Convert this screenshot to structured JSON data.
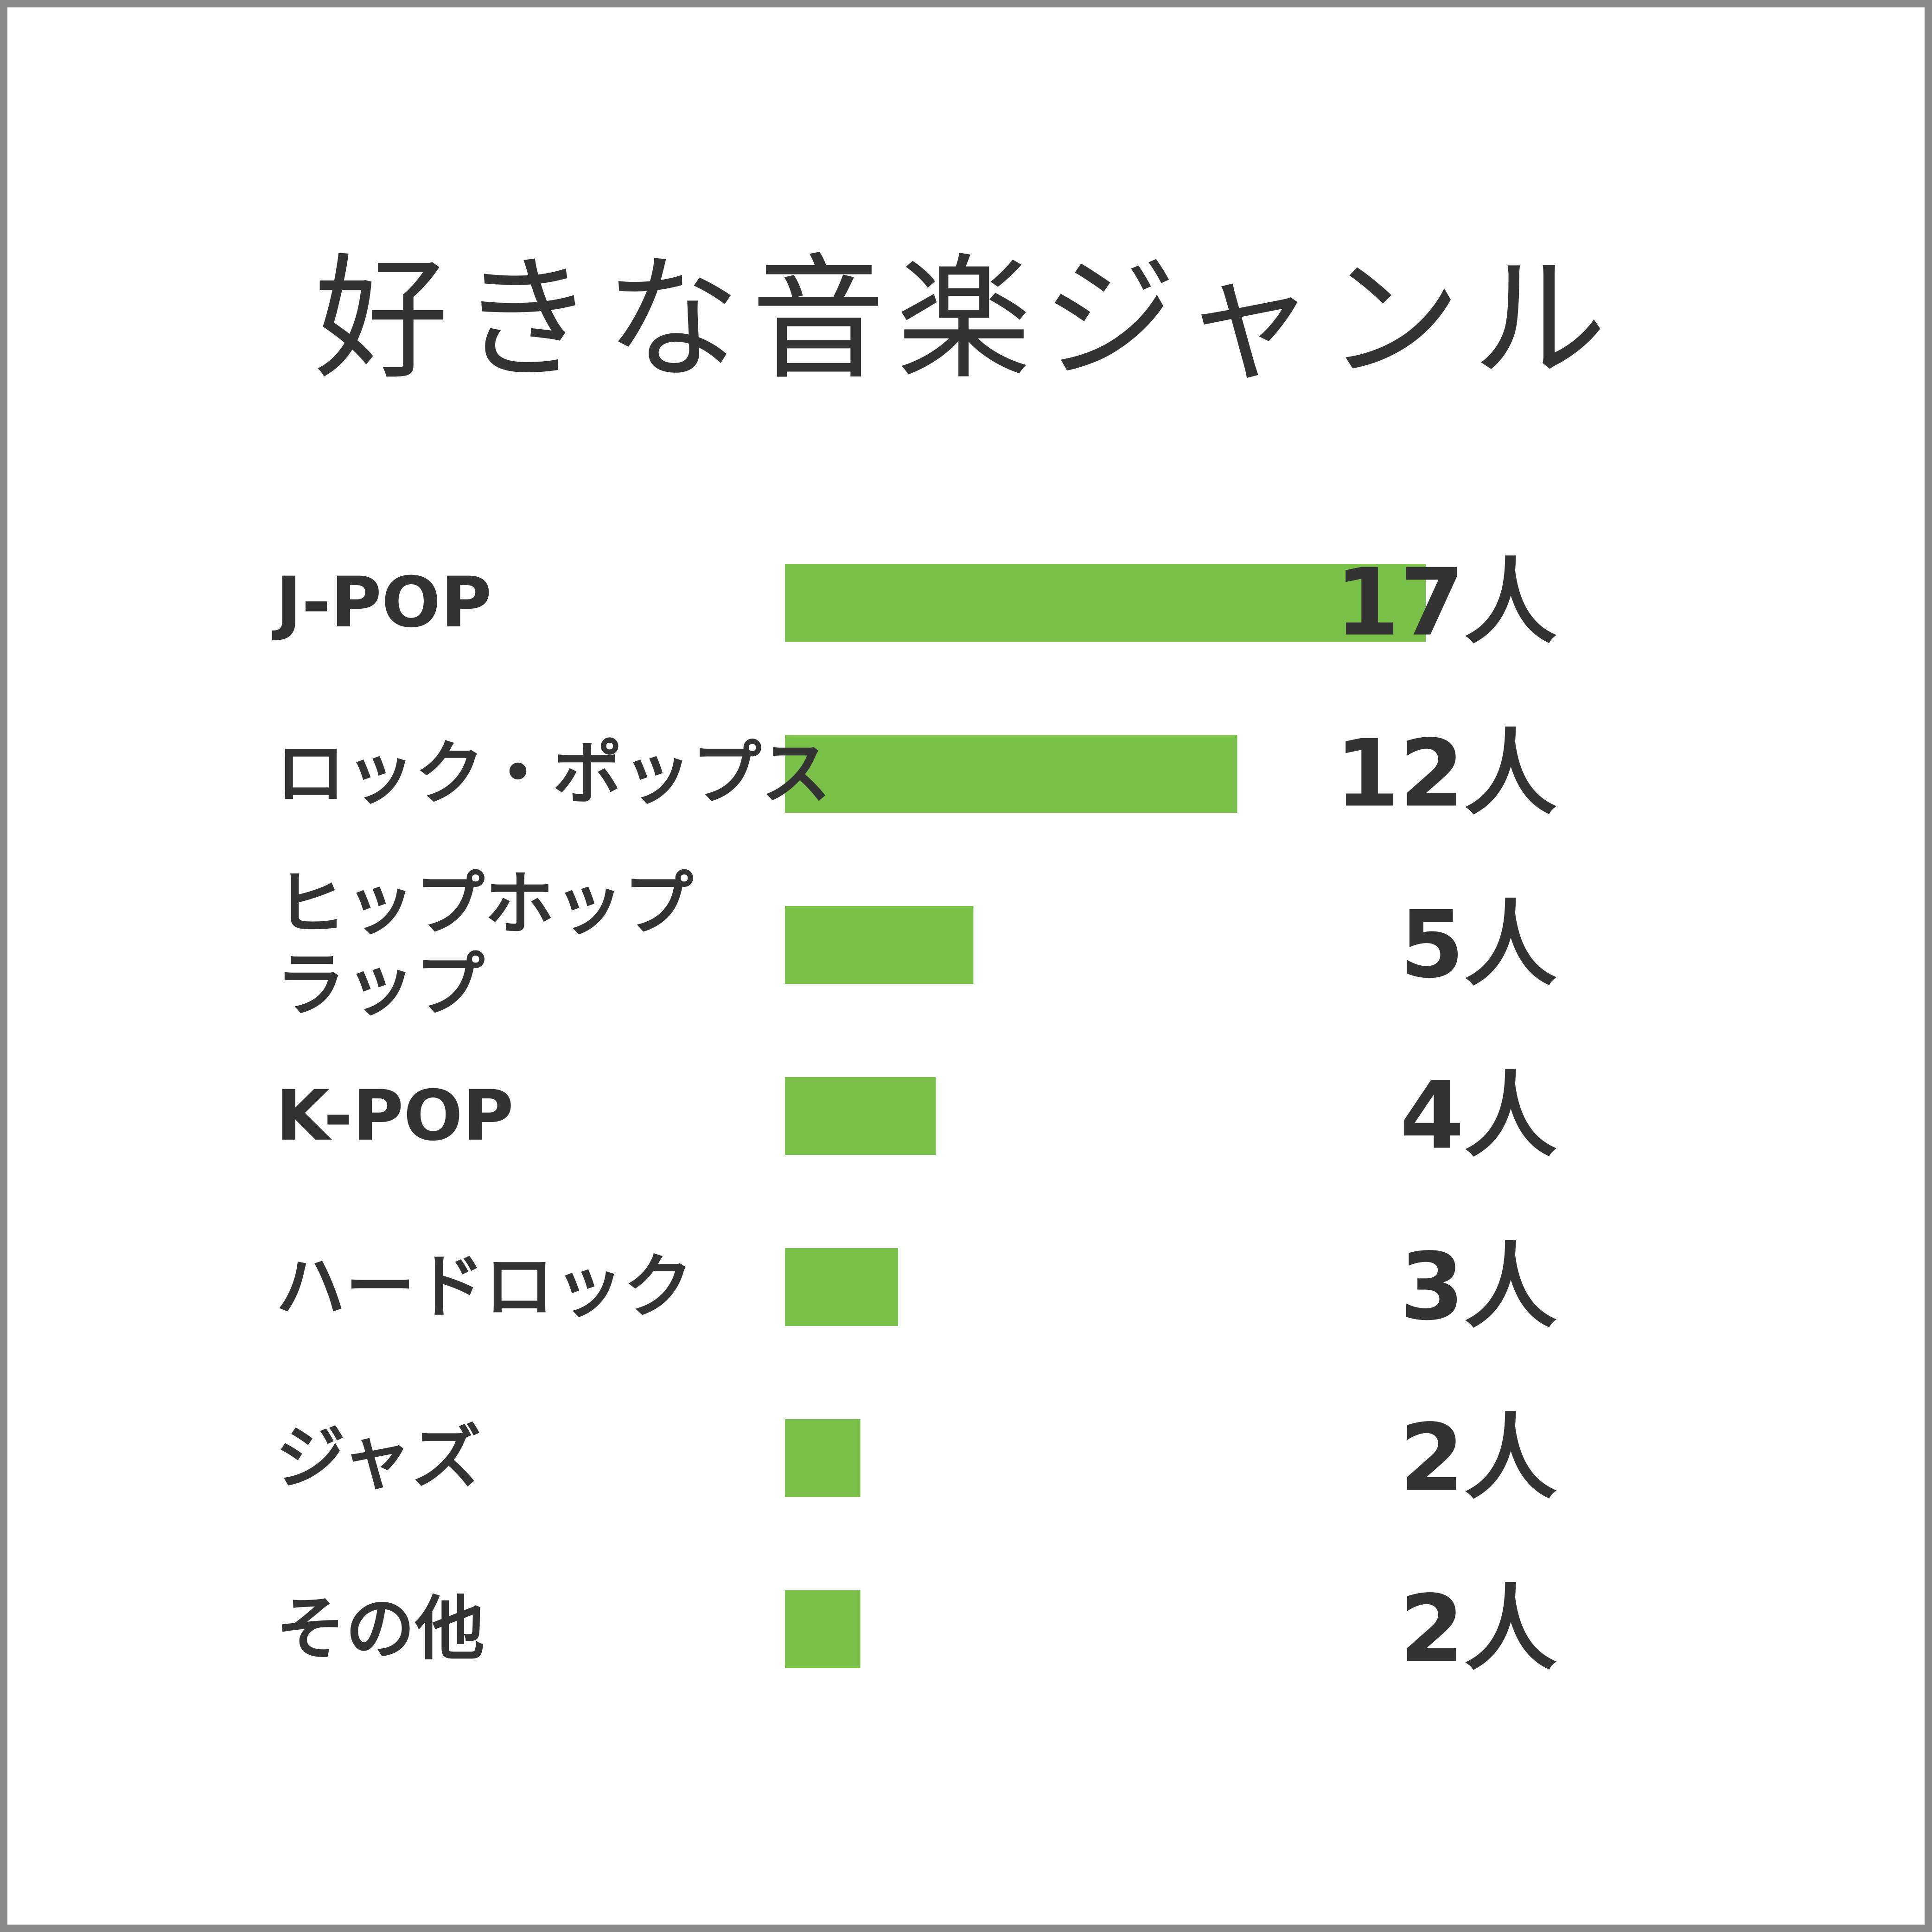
{
  "chart_data": {
    "type": "bar",
    "orientation": "horizontal",
    "title": "好きな音楽ジャンル",
    "categories": [
      [
        "J-POP"
      ],
      [
        "ロック・ポップス"
      ],
      [
        "ヒップホップ",
        "ラップ"
      ],
      [
        "K-POP"
      ],
      [
        "ハードロック"
      ],
      [
        "ジャズ"
      ],
      [
        "その他"
      ]
    ],
    "values": [
      17,
      12,
      5,
      4,
      3,
      2,
      2
    ],
    "value_labels": [
      "17人",
      "12人",
      "5人",
      "4人",
      "3人",
      "2人",
      "2人"
    ],
    "xlim": [
      0,
      17
    ],
    "grid": false,
    "legend": "none",
    "bar_color": "#7ac14a",
    "text_color": "#333333",
    "border_color": "#8a8a8a"
  }
}
